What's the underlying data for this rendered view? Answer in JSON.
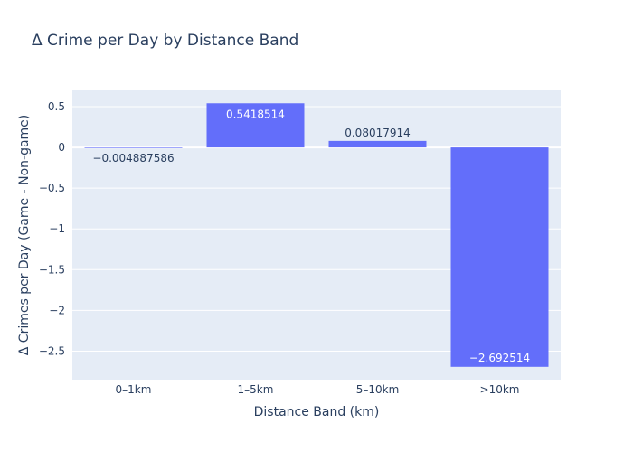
{
  "chart_data": {
    "type": "bar",
    "title": "Δ Crime per Day by Distance Band",
    "xlabel": "Distance Band (km)",
    "ylabel": "Δ Crimes per Day (Game - Non-game)",
    "categories": [
      "0–1km",
      "1–5km",
      "5–10km",
      ">10km"
    ],
    "values": [
      -0.004887586,
      0.5418514,
      0.08017914,
      -2.692514
    ],
    "data_labels": [
      "−0.004887586",
      "0.5418514",
      "0.08017914",
      "−2.692514"
    ],
    "ylim": [
      -2.85,
      0.7
    ],
    "yticks": [
      0.5,
      0,
      -0.5,
      -1,
      -1.5,
      -2,
      -2.5
    ],
    "ytick_labels": [
      "0.5",
      "0",
      "−0.5",
      "−1",
      "−1.5",
      "−2",
      "−2.5"
    ],
    "grid": true,
    "colors": {
      "bar": "#636efa",
      "plot_bg": "#e5ecf6",
      "grid": "#ffffff",
      "text": "#2a3f5f"
    }
  }
}
